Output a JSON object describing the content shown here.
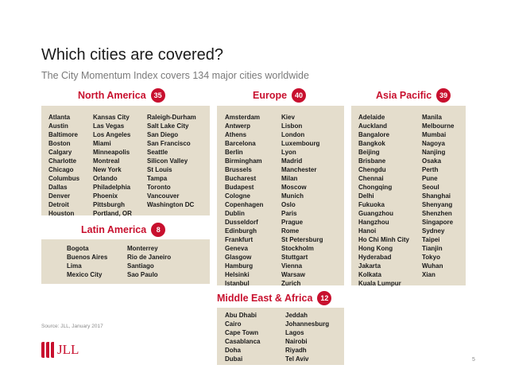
{
  "title": "Which cities are covered?",
  "subtitle": "The City Momentum Index covers 134 major cities worldwide",
  "accent_color": "#c8102e",
  "box_color": "#e4ddcc",
  "regions": {
    "north_america": {
      "name": "North America",
      "count": "35",
      "col1": [
        "Atlanta",
        "Austin",
        "Baltimore",
        "Boston",
        "Calgary",
        "Charlotte",
        "Chicago",
        "Columbus",
        "Dallas",
        "Denver",
        "Detroit",
        "Houston"
      ],
      "col2": [
        "Kansas City",
        "Las Vegas",
        "Los Angeles",
        "Miami",
        "Minneapolis",
        "Montreal",
        "New York",
        "Orlando",
        "Philadelphia",
        "Phoenix",
        "Pittsburgh",
        "Portland, OR"
      ],
      "col3": [
        "Raleigh-Durham",
        "Salt Lake City",
        "San Diego",
        "San Francisco",
        "Seattle",
        "Silicon Valley",
        "St Louis",
        "Tampa",
        "Toronto",
        "Vancouver",
        "Washington DC"
      ]
    },
    "latin_america": {
      "name": "Latin America",
      "count": "8",
      "col1": [
        "Bogota",
        "Buenos Aires",
        "Lima",
        "Mexico City"
      ],
      "col2": [
        "Monterrey",
        "Rio de Janeiro",
        "Santiago",
        "Sao Paulo"
      ]
    },
    "europe": {
      "name": "Europe",
      "count": "40",
      "col1": [
        "Amsterdam",
        "Antwerp",
        "Athens",
        "Barcelona",
        "Berlin",
        "Birmingham",
        "Brussels",
        "Bucharest",
        "Budapest",
        "Cologne",
        "Copenhagen",
        "Dublin",
        "Dusseldorf",
        "Edinburgh",
        "Frankfurt",
        "Geneva",
        "Glasgow",
        "Hamburg",
        "Helsinki",
        "Istanbul"
      ],
      "col2": [
        "Kiev",
        "Lisbon",
        "London",
        "Luxembourg",
        "Lyon",
        "Madrid",
        "Manchester",
        "Milan",
        "Moscow",
        "Munich",
        "Oslo",
        "Paris",
        "Prague",
        "Rome",
        "St Petersburg",
        "Stockholm",
        "Stuttgart",
        "Vienna",
        "Warsaw",
        "Zurich"
      ]
    },
    "middle_east_africa": {
      "name": "Middle East & Africa",
      "count": "12",
      "col1": [
        "Abu Dhabi",
        "Cairo",
        "Cape Town",
        "Casablanca",
        "Doha",
        "Dubai"
      ],
      "col2": [
        "Jeddah",
        "Johannesburg",
        "Lagos",
        "Nairobi",
        "Riyadh",
        "Tel Aviv"
      ]
    },
    "asia_pacific": {
      "name": "Asia Pacific",
      "count": "39",
      "col1": [
        "Adelaide",
        "Auckland",
        "Bangalore",
        "Bangkok",
        "Beijing",
        "Brisbane",
        "Chengdu",
        "Chennai",
        "Chongqing",
        "Delhi",
        "Fukuoka",
        "Guangzhou",
        "Hangzhou",
        "Hanoi",
        "Ho Chi Minh City",
        "Hong Kong",
        "Hyderabad",
        "Jakarta",
        "Kolkata",
        "Kuala Lumpur"
      ],
      "col2": [
        "Manila",
        "Melbourne",
        "Mumbai",
        "Nagoya",
        "Nanjing",
        "Osaka",
        "Perth",
        "Pune",
        "Seoul",
        "Shanghai",
        "Shenyang",
        "Shenzhen",
        "Singapore",
        "Sydney",
        "Taipei",
        "Tianjin",
        "Tokyo",
        "Wuhan",
        "Xian"
      ]
    }
  },
  "source": "Source: JLL, January 2017",
  "logo_text": "JLL",
  "page_number": "5"
}
